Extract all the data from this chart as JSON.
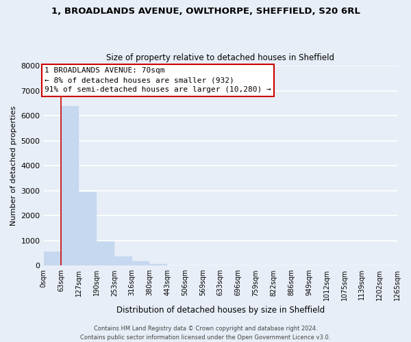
{
  "title": "1, BROADLANDS AVENUE, OWLTHORPE, SHEFFIELD, S20 6RL",
  "subtitle": "Size of property relative to detached houses in Sheffield",
  "xlabel": "Distribution of detached houses by size in Sheffield",
  "ylabel": "Number of detached properties",
  "bar_values": [
    550,
    6400,
    2950,
    975,
    375,
    175,
    75,
    0,
    0,
    0,
    0,
    0,
    0,
    0,
    0,
    0,
    0,
    0,
    0,
    0
  ],
  "bar_labels": [
    "0sqm",
    "63sqm",
    "127sqm",
    "190sqm",
    "253sqm",
    "316sqm",
    "380sqm",
    "443sqm",
    "506sqm",
    "569sqm",
    "633sqm",
    "696sqm",
    "759sqm",
    "822sqm",
    "886sqm",
    "949sqm",
    "1012sqm",
    "1075sqm",
    "1139sqm",
    "1202sqm",
    "1265sqm"
  ],
  "bar_color": "#c5d8ef",
  "bar_edge_color": "#c5d8ef",
  "ylim": [
    0,
    8000
  ],
  "yticks": [
    0,
    1000,
    2000,
    3000,
    4000,
    5000,
    6000,
    7000,
    8000
  ],
  "property_line_x": 1.0,
  "annotation_line1": "1 BROADLANDS AVENUE: 70sqm",
  "annotation_line2": "← 8% of detached houses are smaller (932)",
  "annotation_line3": "91% of semi-detached houses are larger (10,280) →",
  "footer_text": "Contains HM Land Registry data © Crown copyright and database right 2024.\nContains public sector information licensed under the Open Government Licence v3.0.",
  "background_color": "#e8eef7",
  "grid_color": "#ffffff",
  "red_line_color": "#cc0000",
  "n_bars": 20,
  "title_fontsize": 9.5,
  "subtitle_fontsize": 8.5,
  "ylabel_fontsize": 8,
  "xlabel_fontsize": 8.5,
  "tick_fontsize": 7,
  "annot_fontsize": 8,
  "footer_fontsize": 6
}
